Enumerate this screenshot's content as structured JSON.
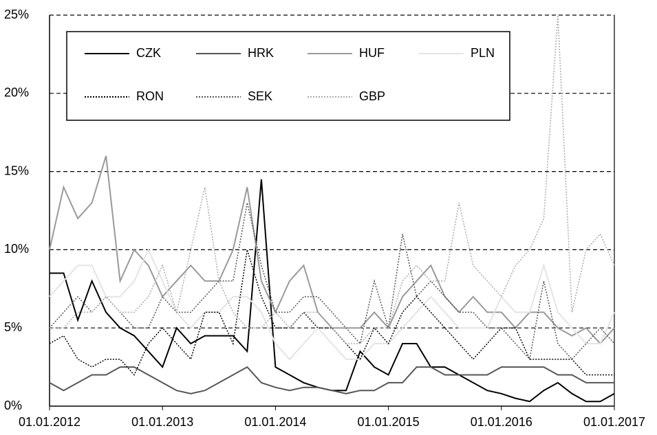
{
  "chart_data": {
    "type": "line",
    "x": [
      2012,
      2012.125,
      2012.25,
      2012.375,
      2012.5,
      2012.625,
      2012.75,
      2012.875,
      2013,
      2013.125,
      2013.25,
      2013.375,
      2013.5,
      2013.625,
      2013.75,
      2013.875,
      2014,
      2014.125,
      2014.25,
      2014.375,
      2014.5,
      2014.625,
      2014.75,
      2014.875,
      2015,
      2015.125,
      2015.25,
      2015.375,
      2015.5,
      2015.625,
      2015.75,
      2015.875,
      2016,
      2016.125,
      2016.25,
      2016.375,
      2016.5,
      2016.625,
      2016.75,
      2016.875,
      2017
    ],
    "series": [
      {
        "name": "CZK",
        "color": "#000000",
        "style": "solid",
        "values": [
          8.5,
          8.5,
          5.5,
          8,
          6,
          5,
          4.5,
          3.5,
          2.5,
          5,
          4,
          4.5,
          4.5,
          4.5,
          3.5,
          14.5,
          2.5,
          2,
          1.5,
          1.2,
          1,
          1,
          3.5,
          2.5,
          2,
          4,
          4,
          2.5,
          2.5,
          2,
          1.5,
          1,
          0.8,
          0.5,
          0.3,
          1,
          1.5,
          0.8,
          0.3,
          0.3,
          0.8
        ]
      },
      {
        "name": "HRK",
        "color": "#555555",
        "style": "solid",
        "values": [
          1.5,
          1,
          1.5,
          2,
          2,
          2.5,
          2.5,
          2,
          1.5,
          1,
          0.8,
          1,
          1.5,
          2,
          2.5,
          1.5,
          1.2,
          1,
          1.2,
          1.2,
          1,
          0.8,
          1,
          1,
          1.5,
          1.5,
          2.5,
          2.5,
          2,
          2,
          2,
          2,
          2.5,
          2.5,
          2.5,
          2.5,
          2,
          2,
          1.5,
          1.5,
          1.5
        ]
      },
      {
        "name": "HUF",
        "color": "#999999",
        "style": "solid",
        "values": [
          10,
          14,
          12,
          13,
          16,
          8,
          10,
          9,
          7,
          8,
          9,
          8,
          8,
          10,
          14,
          8,
          6,
          8,
          9,
          6,
          5,
          5,
          5,
          6,
          5,
          7,
          8,
          9,
          7,
          6,
          7,
          6,
          6,
          5,
          6,
          6,
          5,
          4.5,
          5,
          4,
          5
        ]
      },
      {
        "name": "PLN",
        "color": "#e4e4e4",
        "style": "solid",
        "values": [
          7,
          8,
          9,
          9,
          7,
          7,
          8,
          10,
          8,
          6,
          5,
          6,
          6,
          7,
          7,
          6,
          4,
          3,
          4,
          5,
          4,
          3,
          3,
          4,
          4,
          5,
          6,
          7,
          6,
          5,
          5,
          5,
          7,
          6,
          6,
          9,
          6,
          5,
          4,
          4,
          6
        ]
      },
      {
        "name": "RON",
        "color": "#000000",
        "style": "dotted",
        "values": [
          4,
          4.5,
          3,
          2.5,
          3,
          3,
          2,
          4,
          5,
          4,
          3,
          6,
          6,
          4,
          10,
          7,
          5,
          5,
          6,
          5,
          5,
          4,
          3,
          5,
          4,
          6,
          7,
          6,
          5,
          4,
          3,
          4,
          5,
          5,
          3,
          3,
          3,
          3,
          2,
          2,
          2
        ]
      },
      {
        "name": "SEK",
        "color": "#555555",
        "style": "dotted",
        "values": [
          5,
          6,
          7,
          6,
          7,
          6,
          5,
          5,
          7,
          6,
          6,
          7,
          8,
          8,
          13,
          9,
          6,
          6,
          7,
          7,
          6,
          5,
          4,
          8,
          5,
          11,
          7,
          8,
          7,
          6,
          6,
          5,
          5,
          4,
          3,
          8,
          4,
          3,
          4,
          5,
          4
        ]
      },
      {
        "name": "GBP",
        "color": "#aaaaaa",
        "style": "dotted",
        "values": [
          5,
          5,
          6,
          6,
          7,
          6,
          6,
          7,
          9,
          6,
          10,
          14,
          8,
          6,
          5,
          5,
          6,
          5,
          6,
          6,
          5,
          4,
          4,
          5,
          5,
          8,
          9,
          8,
          8,
          13,
          9,
          8,
          7,
          9,
          10,
          12,
          25,
          6,
          10,
          11,
          9
        ]
      }
    ],
    "xlim": [
      2012,
      2017
    ],
    "xticks": [
      {
        "value": 2012,
        "label": "01.01.2012"
      },
      {
        "value": 2013,
        "label": "01.01.2013"
      },
      {
        "value": 2014,
        "label": "01.01.2014"
      },
      {
        "value": 2015,
        "label": "01.01.2015"
      },
      {
        "value": 2016,
        "label": "01.01.2016"
      },
      {
        "value": 2017,
        "label": "01.01.2017"
      }
    ],
    "ylim": [
      0,
      25
    ],
    "yticks": [
      {
        "value": 0,
        "label": "0%"
      },
      {
        "value": 5,
        "label": "5%"
      },
      {
        "value": 10,
        "label": "10%"
      },
      {
        "value": 15,
        "label": "15%"
      },
      {
        "value": 20,
        "label": "20%"
      },
      {
        "value": 25,
        "label": "25%"
      }
    ],
    "grid": true,
    "legend": "top-left"
  }
}
